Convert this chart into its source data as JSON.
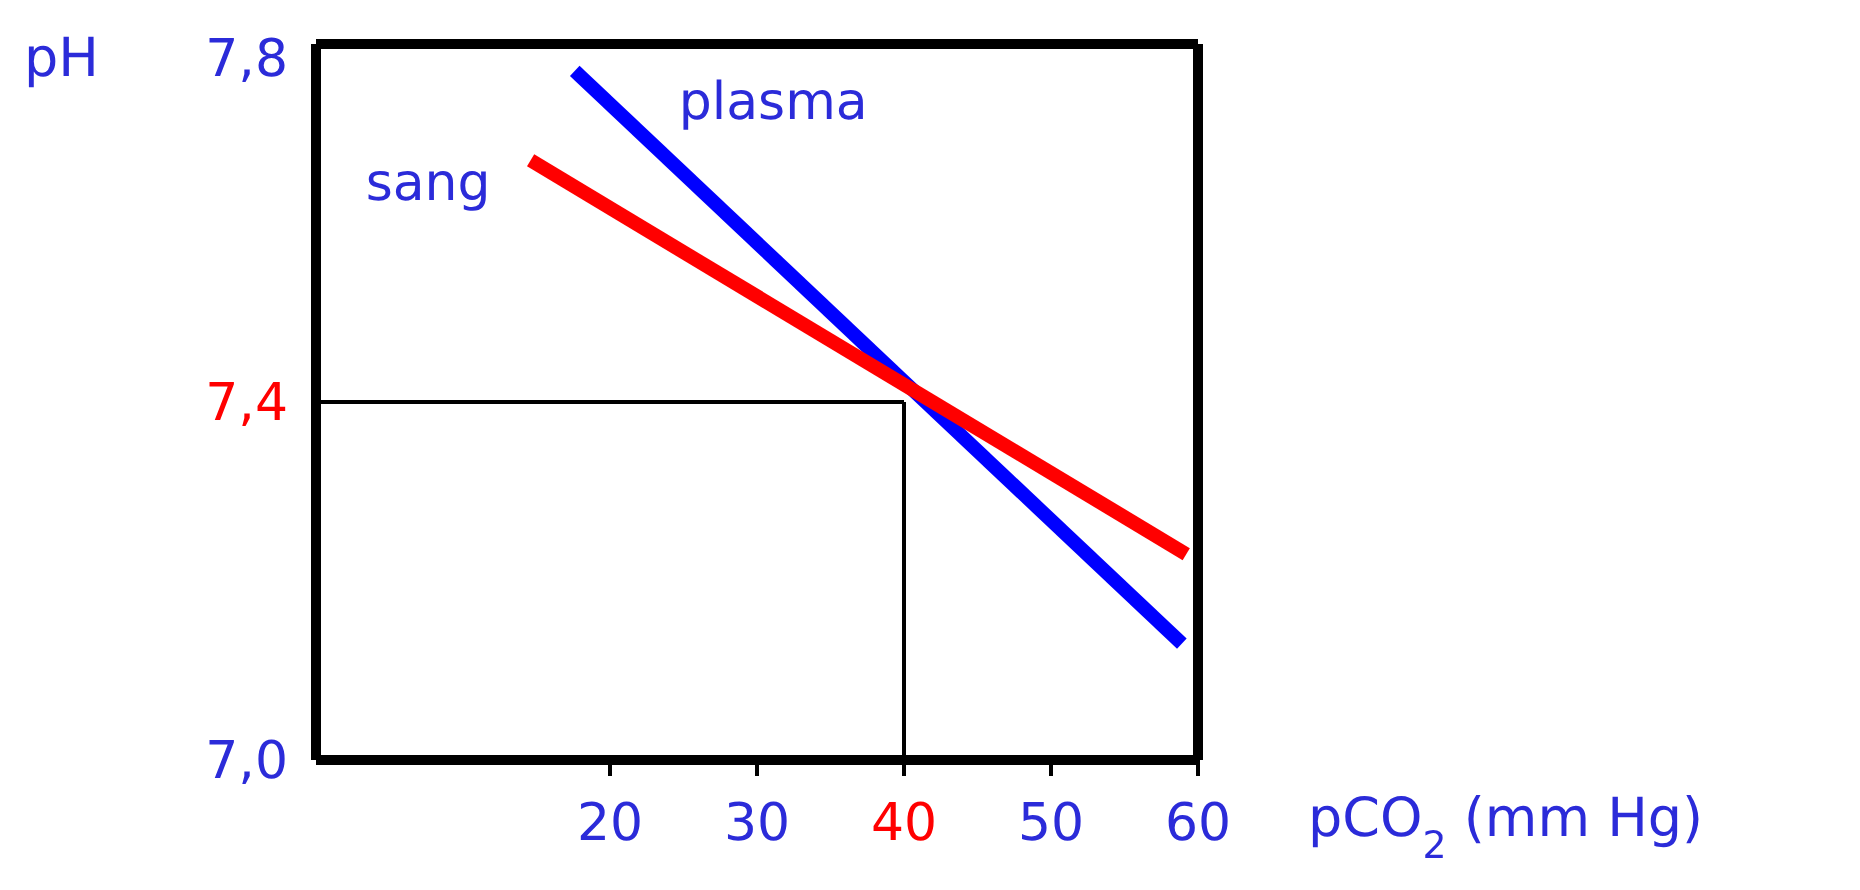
{
  "chart_data": {
    "type": "line",
    "xlabel": "pCO$_{2}$ (mm Hg)",
    "ylabel": "pH",
    "xlim": [
      0,
      60
    ],
    "xticks": [
      20,
      30,
      40,
      50,
      60
    ],
    "ylim": [
      7.0,
      7.8
    ],
    "yticks": [
      {
        "value": 7.0,
        "label": "7,0"
      },
      {
        "value": 7.4,
        "label": "7,4"
      },
      {
        "value": 7.8,
        "label": "7,8"
      }
    ],
    "series": [
      {
        "name": "plasma",
        "color": "#0000ff",
        "x": [
          17.6,
          58.9
        ],
        "values": [
          7.77,
          7.13
        ]
      },
      {
        "name": "sang",
        "color": "#ff0000",
        "x": [
          14.6,
          59.2
        ],
        "values": [
          7.67,
          7.23
        ]
      }
    ],
    "ref_lines": [
      {
        "axis": "x",
        "value": 40,
        "color": "#000000"
      },
      {
        "axis": "y",
        "value": 7.4,
        "color": "#000000"
      }
    ],
    "marker": "none",
    "line_style": "solid"
  }
}
